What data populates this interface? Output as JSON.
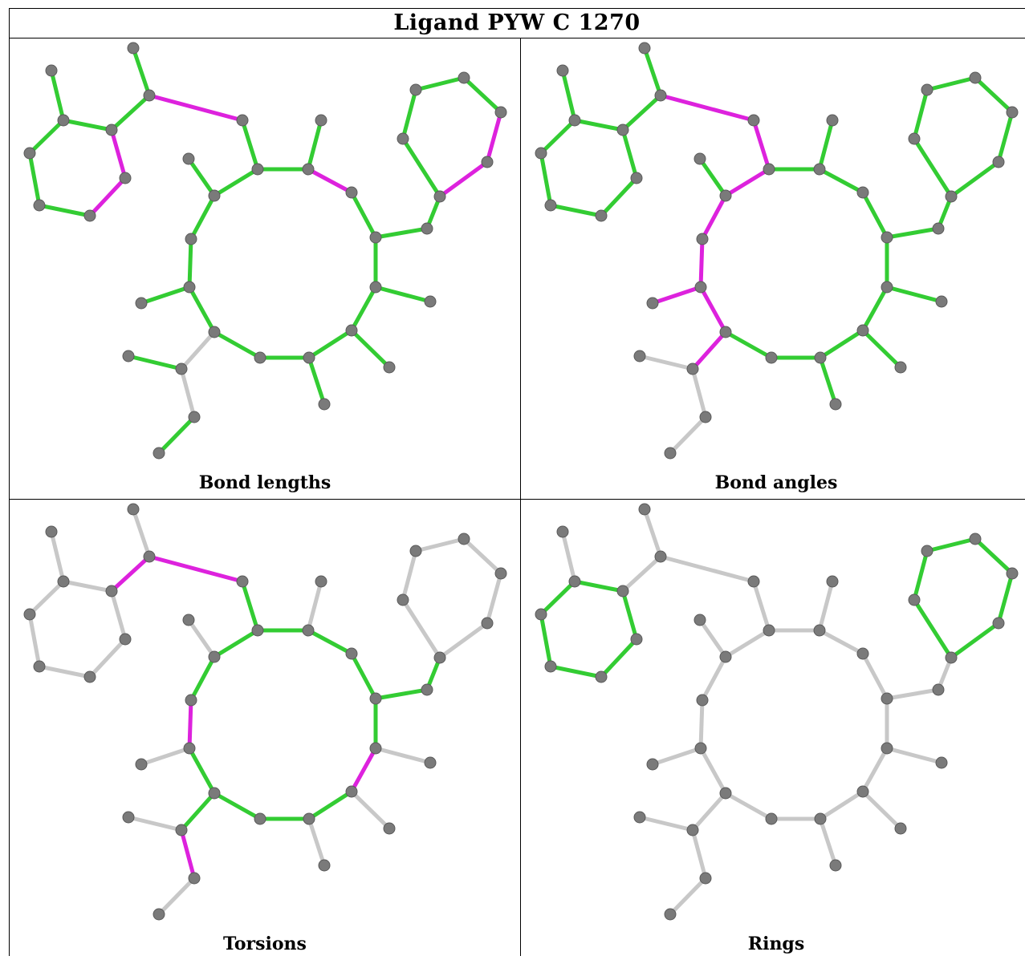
{
  "title": "Ligand PYW C 1270",
  "colors": {
    "ok": "#33cc33",
    "outlier": "#dd22dd",
    "none": "#c8c8c8",
    "atom": "#7a7a7a"
  },
  "panels": [
    {
      "label": "Bond lengths",
      "outlier_bonds": [
        [
          2,
          3
        ],
        [
          5,
          6
        ],
        [
          27,
          28
        ],
        [
          0,
          24
        ],
        [
          38,
          39
        ]
      ],
      "ok_bonds": "all-others",
      "none_bonds": [
        [
          11,
          15
        ],
        [
          15,
          16
        ]
      ]
    },
    {
      "label": "Bond angles",
      "outlier_bonds": [
        [
          2,
          3
        ],
        [
          3,
          4
        ],
        [
          4,
          30
        ],
        [
          30,
          31
        ],
        [
          31,
          10
        ],
        [
          31,
          32
        ],
        [
          10,
          11
        ],
        [
          11,
          15
        ]
      ],
      "ok_bonds": "all-others",
      "none_bonds": [
        [
          15,
          16
        ],
        [
          15,
          17
        ],
        [
          17,
          18
        ]
      ]
    },
    {
      "label": "Torsions",
      "outlier_bonds": [
        [
          1,
          2
        ],
        [
          2,
          3
        ],
        [
          31,
          10
        ],
        [
          15,
          17
        ],
        [
          7,
          8
        ]
      ],
      "ok_bonds": "ring-and-chain",
      "none_bonds": "rest"
    },
    {
      "label": "Rings",
      "outlier_bonds": [],
      "ok_bonds": "aromatic-rings",
      "none_bonds": "rest"
    }
  ]
}
